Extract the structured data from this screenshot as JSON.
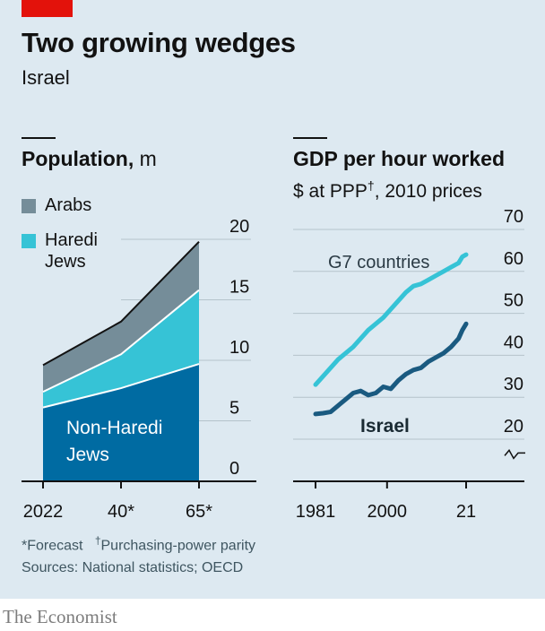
{
  "header": {
    "title": "Two growing wedges",
    "subtitle": "Israel"
  },
  "colors": {
    "background": "#dde9f1",
    "red_tag": "#e3120b",
    "arabs": "#758d99",
    "haredi": "#36c3d6",
    "non_haredi": "#006ba2",
    "g7_line": "#36c3d6",
    "israel_line": "#1a5a80"
  },
  "chart_data": [
    {
      "type": "area",
      "title_bold": "Population,",
      "title_unit": "m",
      "legend": [
        "Arabs",
        "Haredi Jews"
      ],
      "inline_label": "Non-Haredi Jews",
      "x_tick_labels": [
        "2022",
        "40*",
        "65*"
      ],
      "x": [
        2022,
        2040,
        2065
      ],
      "y_ticks": [
        0,
        5,
        10,
        15,
        20
      ],
      "ylim": [
        0,
        20
      ],
      "stacked": true,
      "series": [
        {
          "name": "Non-Haredi Jews",
          "values": [
            6.1,
            7.7,
            9.7
          ]
        },
        {
          "name": "Haredi Jews",
          "values": [
            1.3,
            2.8,
            6.1
          ]
        },
        {
          "name": "Arabs",
          "values": [
            2.2,
            2.7,
            4.0
          ]
        }
      ],
      "grid": true
    },
    {
      "type": "line",
      "title": "GDP per hour worked",
      "subtitle_prefix": "$ at PPP",
      "subtitle_mark": "†",
      "subtitle_suffix": ", 2010 prices",
      "x_tick_labels": [
        "1981",
        "2000",
        "21"
      ],
      "y_ticks": [
        20,
        30,
        40,
        50,
        60,
        70
      ],
      "ylim": [
        17,
        70
      ],
      "axis_break": true,
      "grid": true,
      "series": [
        {
          "name": "G7 countries",
          "x": [
            1981,
            1983,
            1985,
            1987,
            1989,
            1991,
            1993,
            1995,
            1997,
            1999,
            2001,
            2003,
            2005,
            2007,
            2009,
            2011,
            2013,
            2015,
            2017,
            2019,
            2020,
            2021
          ],
          "values": [
            33.0,
            35.0,
            37.0,
            39.0,
            40.5,
            42.0,
            44.0,
            46.0,
            47.5,
            49.0,
            51.0,
            53.0,
            55.0,
            56.5,
            57.0,
            58.0,
            59.0,
            60.0,
            61.0,
            62.0,
            63.5,
            64.0
          ]
        },
        {
          "name": "Israel",
          "x": [
            1981,
            1983,
            1985,
            1987,
            1989,
            1991,
            1993,
            1995,
            1997,
            1999,
            2001,
            2003,
            2005,
            2007,
            2009,
            2011,
            2013,
            2015,
            2017,
            2019,
            2020,
            2021
          ],
          "values": [
            26.0,
            26.2,
            26.5,
            28.0,
            29.5,
            31.0,
            31.5,
            30.5,
            31.0,
            32.5,
            32.0,
            34.0,
            35.5,
            36.5,
            37.0,
            38.5,
            39.5,
            40.5,
            42.0,
            44.0,
            46.0,
            47.5
          ]
        }
      ]
    }
  ],
  "footnotes": {
    "forecast": "*Forecast",
    "ppp_mark": "†",
    "ppp": "Purchasing-power parity",
    "sources": "Sources: National statistics; OECD"
  },
  "brand": "The Economist"
}
